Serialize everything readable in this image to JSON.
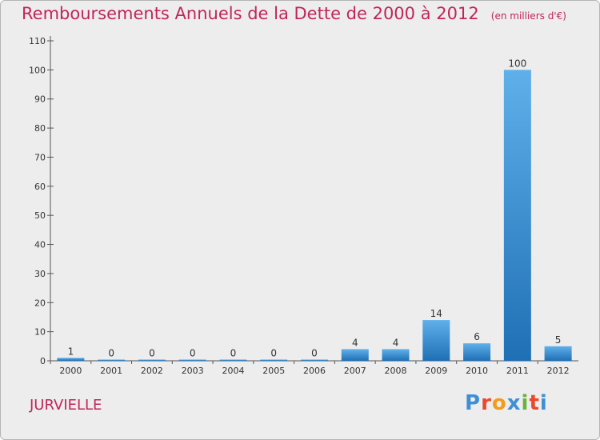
{
  "title": "Remboursements Annuels de la Dette de 2000 à 2012",
  "subtitle": "(en milliers d'€)",
  "commune": "JURVIELLE",
  "logo": {
    "text": "Proxiti",
    "colors": [
      "#3e8fd4",
      "#e8492a",
      "#f29b1d",
      "#3e8fd4",
      "#6ab13d",
      "#e8492a",
      "#3e8fd4"
    ]
  },
  "colors": {
    "background": "#ededed",
    "bar_top": "#5fb0ea",
    "bar_bottom": "#1f6fb5",
    "title": "#c0255b",
    "axis": "#555555"
  },
  "chart_data": {
    "type": "bar",
    "categories": [
      "2000",
      "2001",
      "2002",
      "2003",
      "2004",
      "2005",
      "2006",
      "2007",
      "2008",
      "2009",
      "2010",
      "2011",
      "2012"
    ],
    "values": [
      1,
      0,
      0,
      0,
      0,
      0,
      0,
      4,
      4,
      14,
      6,
      100,
      5
    ],
    "ylim": [
      0,
      110
    ],
    "yticks": [
      0,
      10,
      20,
      30,
      40,
      50,
      60,
      70,
      80,
      90,
      100,
      110
    ],
    "grid": false,
    "legend": "none"
  }
}
